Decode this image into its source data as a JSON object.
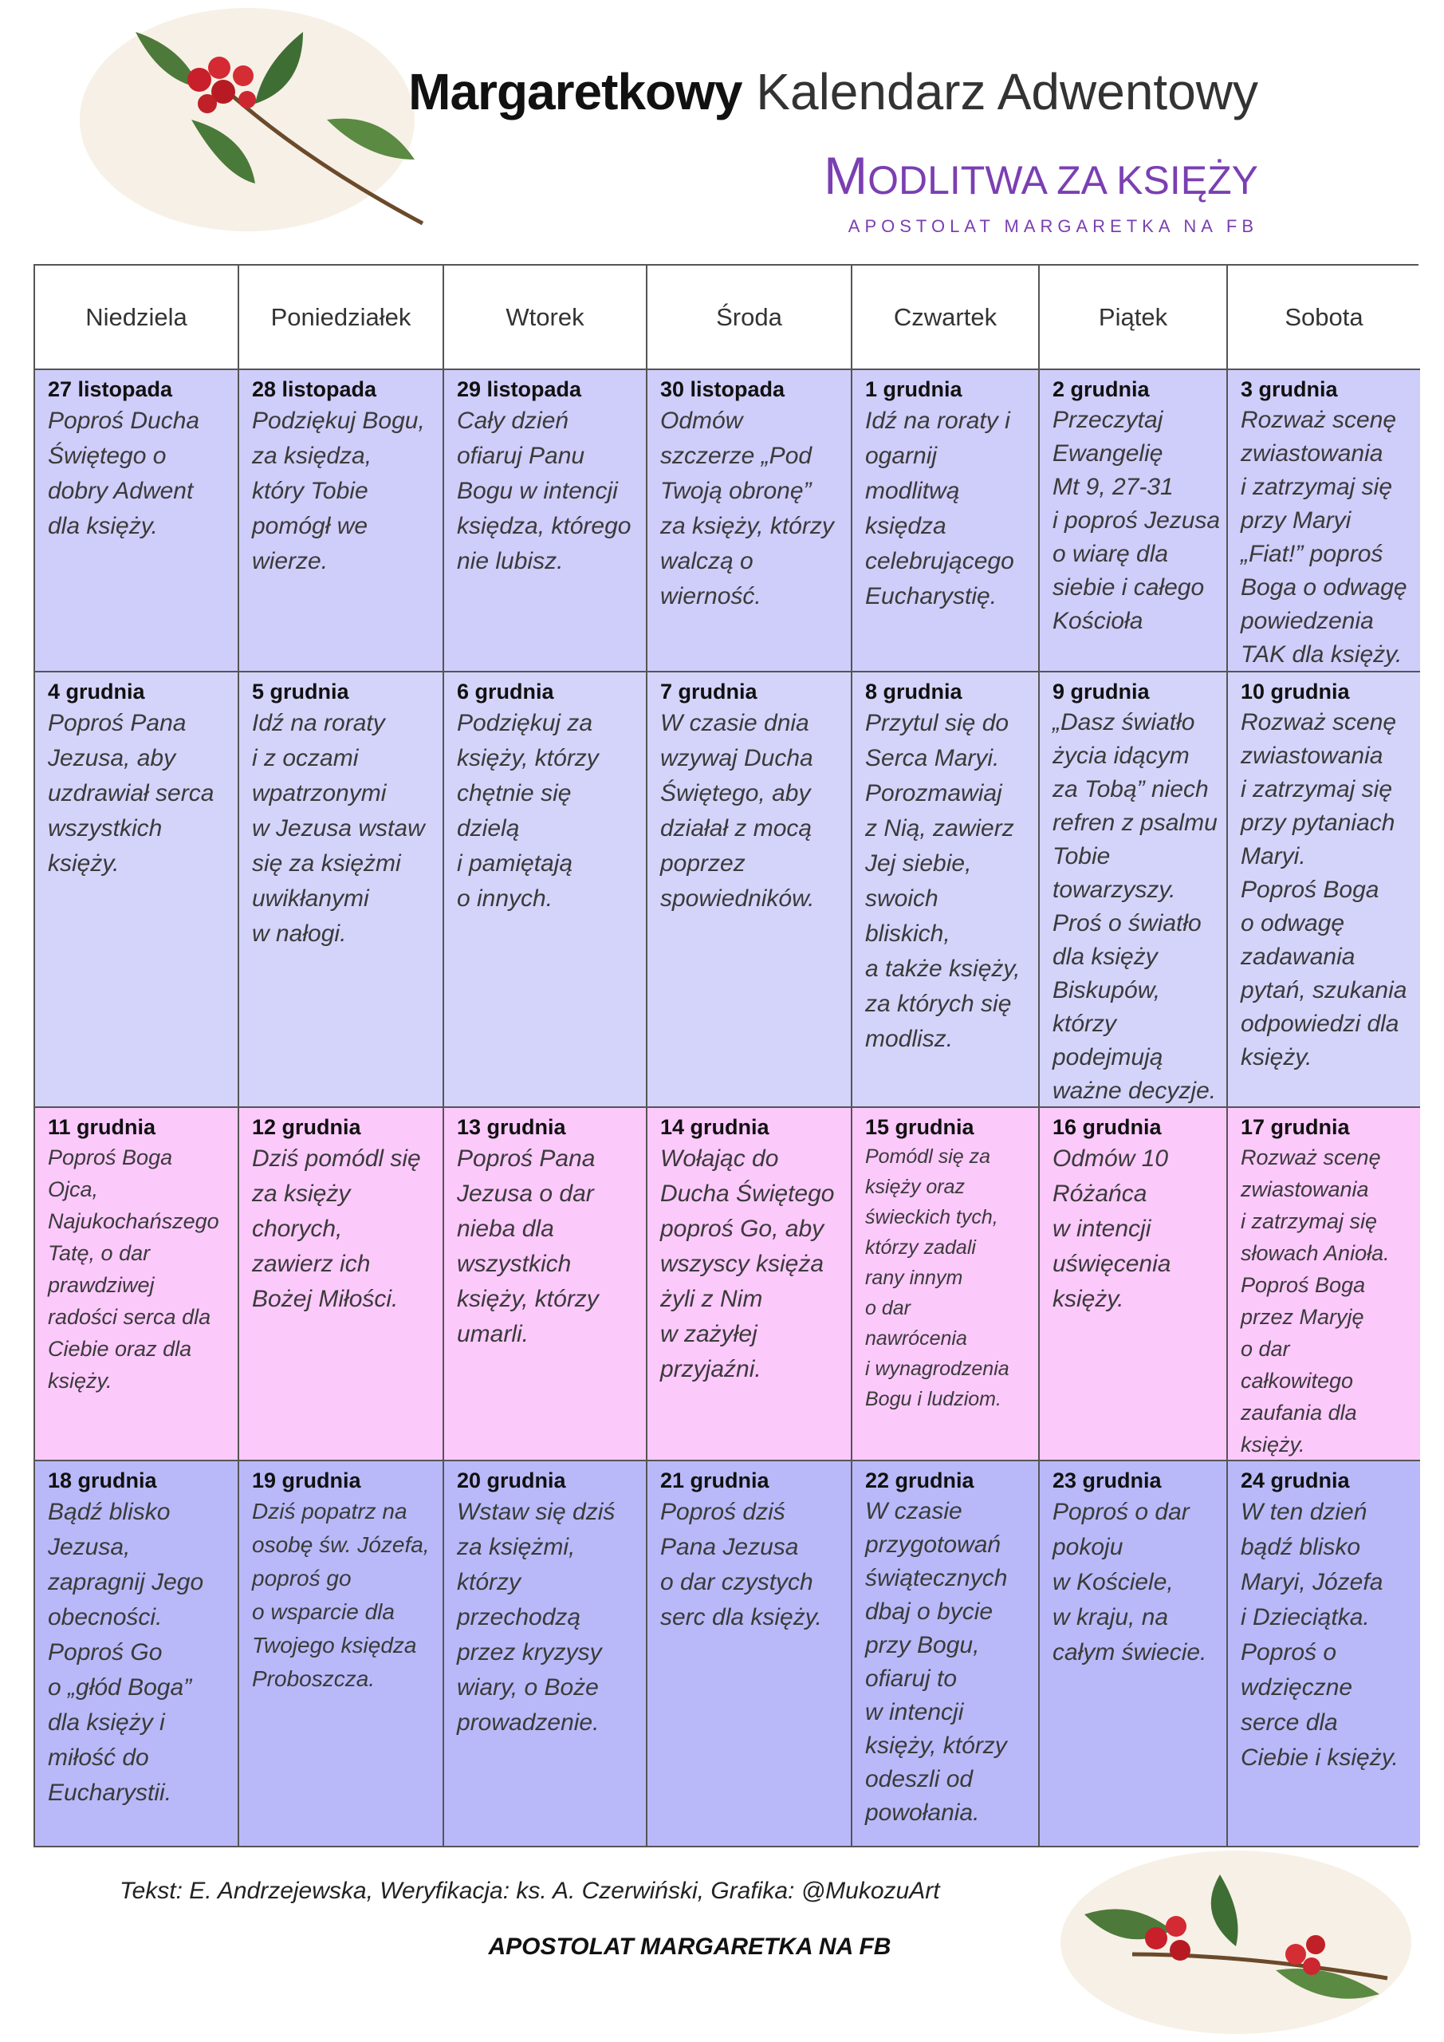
{
  "header": {
    "title_bold": "Margaretkowy",
    "title_rest": "Kalendarz Adwentowy",
    "subtitle": "MODLITWA ZA KSIĘŻY",
    "tagline": "APOSTOLAT MARGARETKA NA FB"
  },
  "table": {
    "columns": [
      "Niedziela",
      "Poniedziałek",
      "Wtorek",
      "Środa",
      "Czwartek",
      "Piątek",
      "Sobota"
    ],
    "rows": [
      [
        {
          "date": "27 listopada",
          "lines": [
            "Poproś Ducha",
            "Świętego o",
            "dobry Adwent",
            "dla księży."
          ]
        },
        {
          "date": "28 listopada",
          "lines": [
            "Podziękuj Bogu,",
            "za księdza,",
            "który Tobie",
            "pomógł we",
            "wierze."
          ]
        },
        {
          "date": "29 listopada",
          "lines": [
            "Cały dzień",
            "ofiaruj Panu",
            "Bogu w intencji",
            "księdza, którego",
            "nie lubisz."
          ]
        },
        {
          "date": "30 listopada",
          "lines": [
            "Odmów",
            "szczerze „Pod",
            "Twoją obronę”",
            "za księży, którzy",
            "walczą o",
            "wierność."
          ]
        },
        {
          "date": "1 grudnia",
          "lines": [
            "Idź na roraty i",
            "ogarnij",
            "modlitwą",
            "księdza",
            "celebrującego",
            "Eucharystię."
          ]
        },
        {
          "date": "2 grudnia",
          "lines": [
            "Przeczytaj",
            "Ewangelię",
            "Mt 9, 27-31",
            "i poproś Jezusa",
            "o wiarę dla",
            "siebie i całego",
            "Kościoła"
          ]
        },
        {
          "date": "3 grudnia",
          "lines": [
            "Rozważ scenę",
            "zwiastowania",
            "i  zatrzymaj się",
            "przy Maryi",
            "„Fiat!” poproś",
            "Boga o odwagę",
            "powiedzenia",
            "TAK dla księży."
          ]
        }
      ],
      [
        {
          "date": "4 grudnia",
          "lines": [
            "Poproś Pana",
            "Jezusa, aby",
            "uzdrawiał serca",
            "wszystkich",
            "księży."
          ]
        },
        {
          "date": "5 grudnia",
          "lines": [
            "Idź na roraty",
            "i  z oczami",
            "wpatrzonymi",
            "w Jezusa wstaw",
            "się za księżmi",
            "uwikłanymi",
            "w nałogi."
          ]
        },
        {
          "date": "6 grudnia",
          "lines": [
            "Podziękuj za",
            "księży, którzy",
            "chętnie się",
            "dzielą",
            "i pamiętają",
            "o innych."
          ]
        },
        {
          "date": "7 grudnia",
          "lines": [
            "W czasie dnia",
            "wzywaj Ducha",
            "Świętego, aby",
            "działał z mocą",
            "poprzez",
            "spowiedników."
          ]
        },
        {
          "date": "8 grudnia",
          "lines": [
            "Przytul się do",
            "Serca Maryi.",
            "Porozmawiaj",
            "z Nią, zawierz",
            "Jej siebie,",
            "swoich",
            "bliskich,",
            "a także księży,",
            "za których się",
            "modlisz."
          ]
        },
        {
          "date": "9 grudnia",
          "lines": [
            "„Dasz światło",
            "życia idącym",
            "za Tobą” niech",
            "refren z psalmu",
            "Tobie",
            "towarzyszy.",
            "Proś o światło",
            "dla księży",
            "Biskupów,",
            "którzy",
            "podejmują",
            "ważne decyzje."
          ]
        },
        {
          "date": "10 grudnia",
          "lines": [
            "Rozważ scenę",
            "zwiastowania",
            "i zatrzymaj się",
            "przy pytaniach",
            "Maryi.",
            "Poproś Boga",
            "o odwagę",
            "zadawania",
            "pytań, szukania",
            "odpowiedzi dla",
            "księży."
          ]
        }
      ],
      [
        {
          "date": "11 grudnia",
          "lines": [
            "Poproś Boga",
            "Ojca,",
            "Najukochańszego",
            "Tatę, o dar",
            "prawdziwej",
            "radości serca dla",
            "Ciebie oraz dla",
            "księży."
          ]
        },
        {
          "date": "12 grudnia",
          "lines": [
            "Dziś pomódl się",
            "za księży",
            "chorych,",
            "zawierz ich",
            "Bożej Miłości."
          ]
        },
        {
          "date": "13 grudnia",
          "lines": [
            "Poproś Pana",
            "Jezusa o dar",
            "nieba dla",
            "wszystkich",
            "księży, którzy",
            "umarli."
          ]
        },
        {
          "date": "14 grudnia",
          "lines": [
            "Wołając do",
            "Ducha Świętego",
            "poproś Go, aby",
            "wszyscy księża",
            "żyli z Nim",
            "w zażyłej",
            "przyjaźni."
          ]
        },
        {
          "date": "15 grudnia",
          "lines": [
            "Pomódl się za",
            "księży oraz",
            "świeckich tych,",
            "którzy zadali",
            "rany innym",
            "o dar",
            "nawrócenia",
            "i wynagrodzenia",
            "Bogu i ludziom."
          ]
        },
        {
          "date": "16 grudnia",
          "lines": [
            "Odmów 10",
            "Różańca",
            "w intencji",
            "uświęcenia",
            "księży."
          ]
        },
        {
          "date": "17 grudnia",
          "lines": [
            "Rozważ scenę",
            "zwiastowania",
            "i zatrzymaj się",
            "słowach Anioła.",
            "Poproś Boga",
            "przez Maryję",
            "o dar",
            "całkowitego",
            "zaufania dla",
            "księży."
          ]
        }
      ],
      [
        {
          "date": "18 grudnia",
          "lines": [
            "Bądź blisko",
            "Jezusa,",
            "zapragnij Jego",
            "obecności.",
            "Poproś Go",
            "o „głód Boga”",
            "dla księży i",
            "miłość do",
            "Eucharystii."
          ]
        },
        {
          "date": "19 grudnia",
          "lines": [
            "Dziś popatrz na",
            "osobę św. Józefa,",
            "poproś go",
            "o wsparcie dla",
            "Twojego księdza",
            "Proboszcza."
          ]
        },
        {
          "date": "20 grudnia",
          "lines": [
            "Wstaw się dziś",
            "za księżmi,",
            "którzy",
            "przechodzą",
            "przez kryzysy",
            "wiary, o Boże",
            "prowadzenie."
          ]
        },
        {
          "date": "21 grudnia",
          "lines": [
            "Poproś dziś",
            "Pana Jezusa",
            "o dar czystych",
            "serc dla księży."
          ]
        },
        {
          "date": "22 grudnia",
          "lines": [
            "W czasie",
            "przygotowań",
            "świątecznych",
            "dbaj o bycie",
            "przy Bogu,",
            "ofiaruj to",
            "w intencji",
            "księży, którzy",
            "odeszli od",
            "powołania."
          ]
        },
        {
          "date": "23 grudnia",
          "lines": [
            "Poproś o dar",
            "pokoju",
            "w Kościele,",
            "w kraju, na",
            "całym świecie."
          ]
        },
        {
          "date": "24 grudnia",
          "lines": [
            "W ten dzień",
            "bądź blisko",
            "Maryi, Józefa",
            "i Dzieciątka.",
            "Poproś o",
            "wdzięczne",
            "serce dla",
            "Ciebie i księży."
          ]
        }
      ]
    ]
  },
  "footer": {
    "credit": "Tekst: E. Andrzejewska, Weryfikacja: ks. A. Czerwiński, Grafika: @MukozuArt",
    "tagline": "APOSTOLAT MARGARETKA NA FB"
  }
}
